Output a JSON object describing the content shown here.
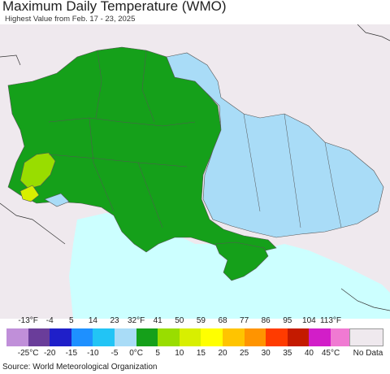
{
  "title": "Maximum Daily Temperature (WMO)",
  "subtitle": "Highest Value from Feb. 17 - 23, 2025",
  "source": "Source: World Meteorological Organization",
  "legend": {
    "fahrenheit_ticks": [
      "-13°F",
      "-4",
      "5",
      "14",
      "23",
      "32°F",
      "41",
      "50",
      "59",
      "68",
      "77",
      "86",
      "95",
      "104",
      "113°F"
    ],
    "celsius_ticks": [
      "-25°C",
      "-20",
      "-15",
      "-10",
      "-5",
      "0°C",
      "5",
      "10",
      "15",
      "20",
      "25",
      "30",
      "35",
      "40",
      "45°C"
    ],
    "colors": [
      "#c08fd9",
      "#6a3d9a",
      "#1f1fc9",
      "#1e90ff",
      "#22c4f5",
      "#a9dcf7",
      "#15a01a",
      "#99dd00",
      "#d8ef00",
      "#ffff00",
      "#ffc400",
      "#ff9400",
      "#ff3b00",
      "#c41a00",
      "#d21ec8",
      "#f07ad2"
    ],
    "no_data_label": "No Data",
    "no_data_color": "#efe9ee"
  },
  "map": {
    "outside_color": "#efe9ee",
    "sea_color": "#ccffff",
    "region_fill_colors": {
      "main": "#15a01a",
      "cold": "#a9dcf7",
      "warm": "#99dd00",
      "warmer": "#d8ef00"
    }
  }
}
